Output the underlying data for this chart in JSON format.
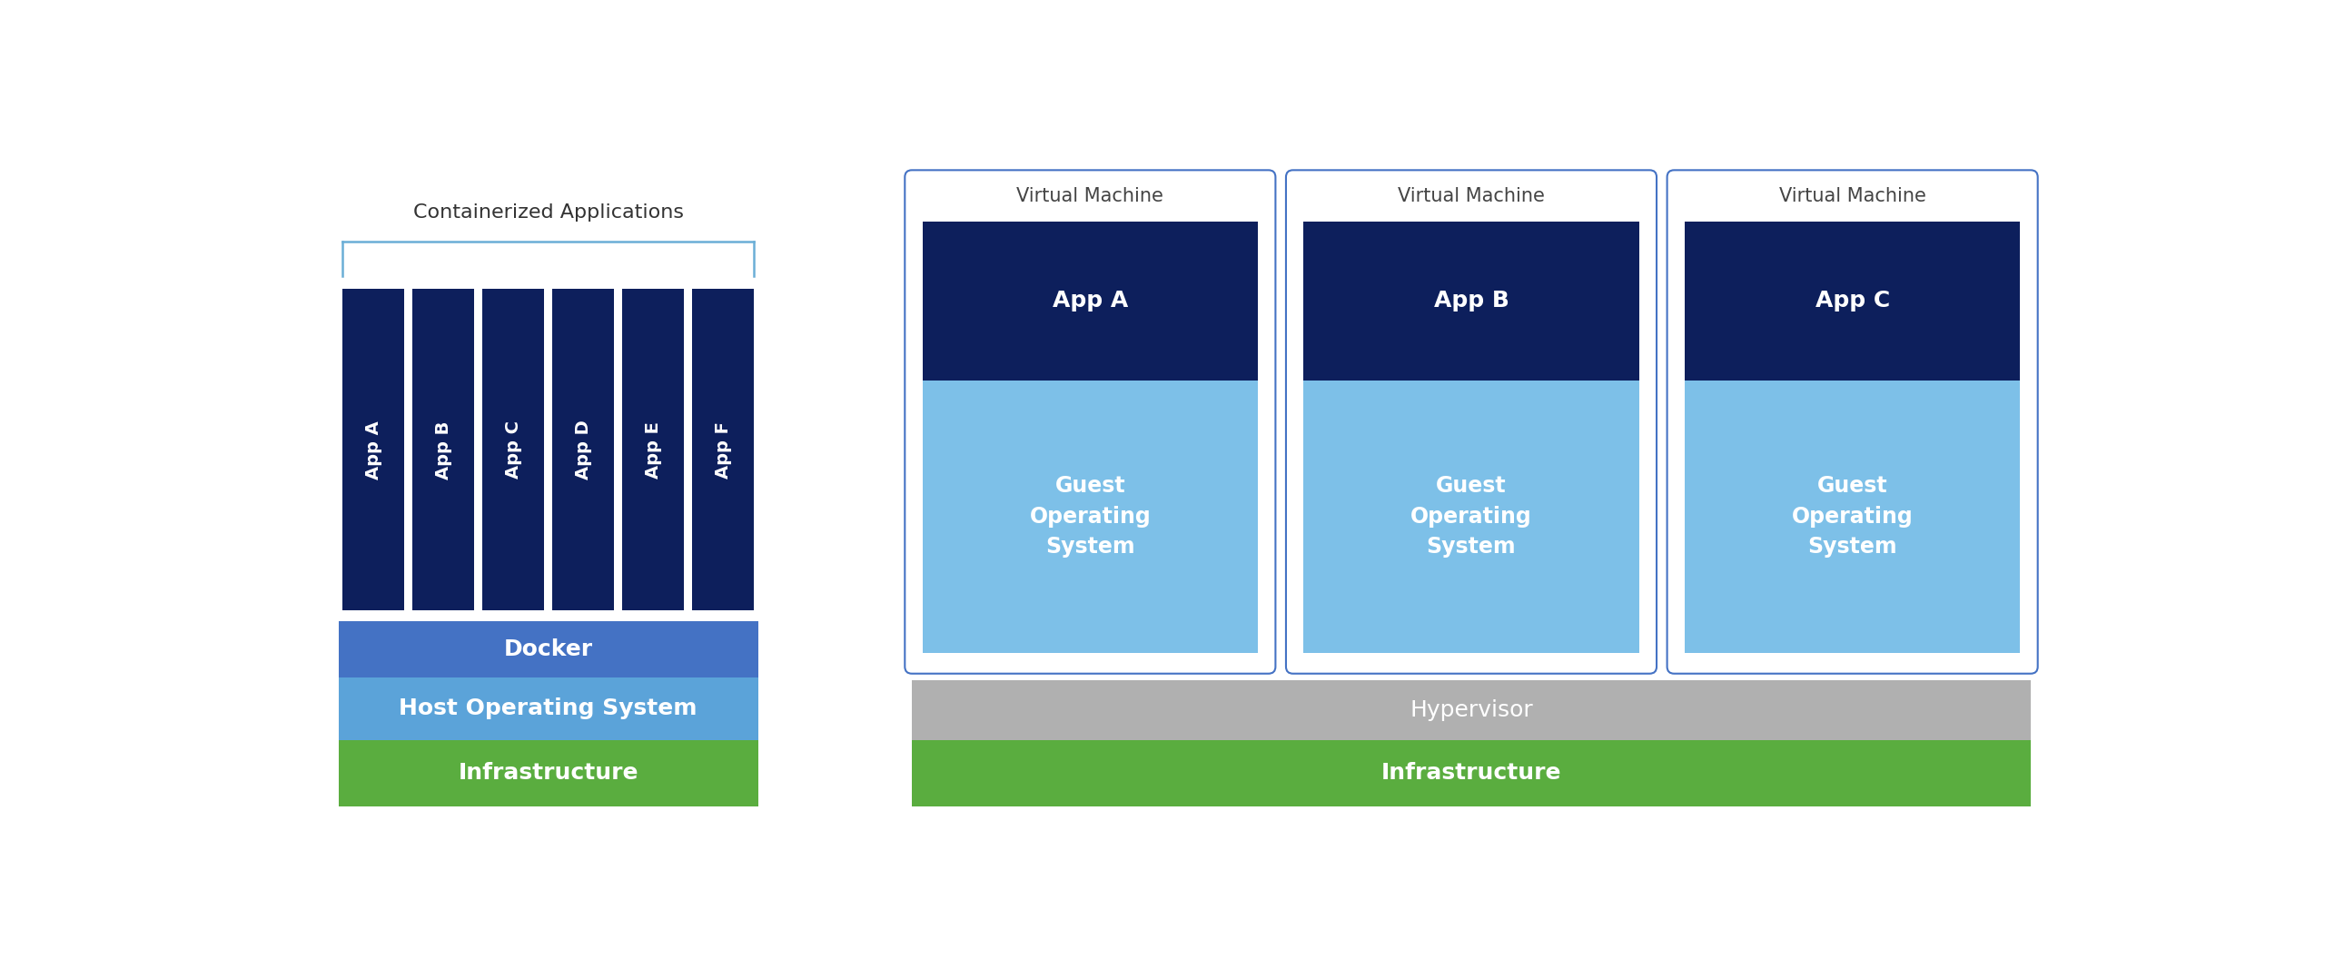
{
  "bg_color": "#ffffff",
  "left_diagram": {
    "title": "Containerized Applications",
    "title_fontsize": 16,
    "title_color": "#333333",
    "apps": [
      "App A",
      "App B",
      "App C",
      "App D",
      "App E",
      "App F"
    ],
    "app_color": "#0d1f5c",
    "app_text_color": "#ffffff",
    "app_fontsize": 14,
    "docker_label": "Docker",
    "docker_color": "#4472c4",
    "docker_text_color": "#ffffff",
    "docker_fontsize": 18,
    "host_os_label": "Host Operating System",
    "host_os_color": "#5ba3d9",
    "host_os_text_color": "#ffffff",
    "host_os_fontsize": 18,
    "infra_label": "Infrastructure",
    "infra_color": "#5aad3f",
    "infra_text_color": "#ffffff",
    "infra_fontsize": 18,
    "bracket_color": "#6baed6"
  },
  "right_diagram": {
    "vms": [
      "Virtual Machine",
      "Virtual Machine",
      "Virtual Machine"
    ],
    "vm_fontsize": 15,
    "apps": [
      "App A",
      "App B",
      "App C"
    ],
    "app_color": "#0d1f5c",
    "app_text_color": "#ffffff",
    "app_fontsize": 18,
    "guest_os_label": "Guest\nOperating\nSystem",
    "guest_os_color": "#7dc0e8",
    "guest_os_text_color": "#ffffff",
    "guest_os_fontsize": 17,
    "vm_border_color": "#4472c4",
    "vm_bg_color": "#ffffff",
    "vm_label_color": "#444444",
    "hypervisor_label": "Hypervisor",
    "hypervisor_color": "#b0b0b0",
    "hypervisor_text_color": "#ffffff",
    "hypervisor_fontsize": 18,
    "infra_label": "Infrastructure",
    "infra_color": "#5aad3f",
    "infra_text_color": "#ffffff",
    "infra_fontsize": 18
  }
}
